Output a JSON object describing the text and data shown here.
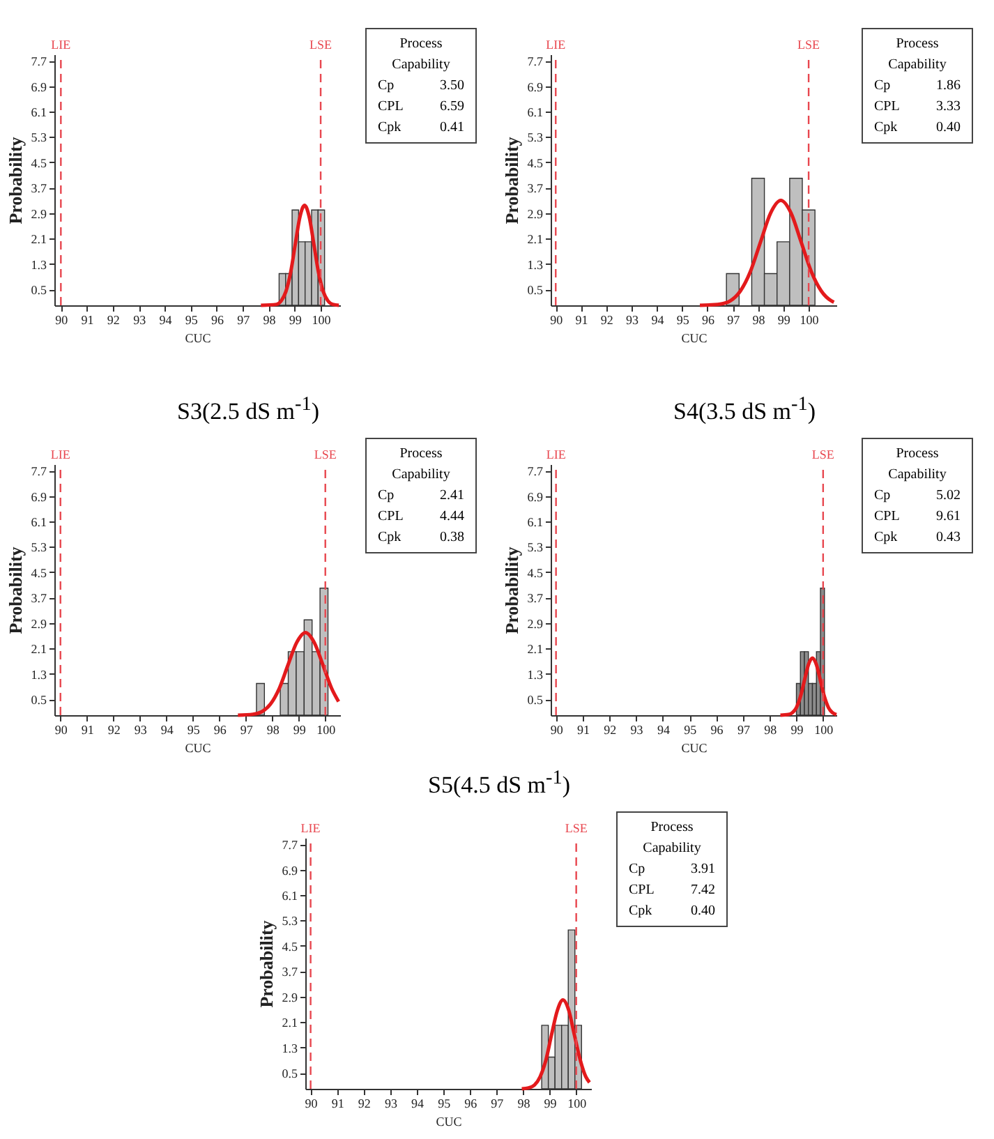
{
  "chart_data": [
    {
      "type": "histogram",
      "xlabel": "CUC",
      "ylabel": "Probability",
      "bins": [
        98.4,
        98.65,
        98.9,
        99.15,
        99.4,
        99.65,
        99.9,
        100.15
      ],
      "values": [
        1,
        1,
        3,
        2,
        2,
        3,
        3
      ],
      "color": "#bfbfbf",
      "series": [
        {
          "type": "line",
          "color": "#e31a1c",
          "x": [
            97.7,
            98.3,
            98.48,
            98.66,
            98.84,
            99.02,
            99.2,
            99.38,
            99.56,
            99.74,
            99.92,
            100.1,
            100.28,
            100.46,
            100.7
          ],
          "values": [
            0.0,
            0.03,
            0.14,
            0.43,
            1.02,
            1.91,
            2.78,
            3.15,
            2.78,
            1.91,
            1.02,
            0.43,
            0.14,
            0.03,
            0.0
          ]
        }
      ],
      "xlim": [
        89.75,
        100.75
      ],
      "xticks": [
        90,
        91,
        92,
        93,
        94,
        95,
        96,
        97,
        98,
        99,
        100
      ],
      "ylim": [
        0,
        7.9
      ],
      "yticks": [
        0.5,
        1.3,
        2.1,
        2.9,
        3.7,
        4.5,
        5.3,
        6.1,
        6.9,
        7.7
      ],
      "ref_lines": [
        {
          "axis": "x",
          "value": 90,
          "label": "LIE",
          "color": "#e8474f",
          "line_style": "dashed"
        },
        {
          "axis": "x",
          "value": 100,
          "label": "LSE",
          "color": "#e8474f",
          "line_style": "dashed"
        }
      ],
      "annotations": [
        "Process Capability",
        "Cp 3.50",
        "CPL 6.59",
        "Cpk 0.41"
      ]
    },
    {
      "type": "histogram",
      "xlabel": "CUC",
      "ylabel": "Probability",
      "bins": [
        96.75,
        97.25,
        97.75,
        98.25,
        98.75,
        99.25,
        99.75,
        100.25
      ],
      "values": [
        1,
        0,
        4,
        1,
        2,
        4,
        3
      ],
      "color": "#bfbfbf",
      "series": [
        {
          "type": "line",
          "color": "#e31a1c",
          "x": [
            95.7,
            96.5,
            96.9,
            97.3,
            97.7,
            98.1,
            98.5,
            98.9,
            99.3,
            99.7,
            100.1,
            100.5,
            100.9,
            101.0
          ],
          "values": [
            0.0,
            0.04,
            0.14,
            0.45,
            1.07,
            2.0,
            2.91,
            3.3,
            2.91,
            2.0,
            1.07,
            0.45,
            0.14,
            0.1
          ]
        }
      ],
      "xlim": [
        89.8,
        101.1
      ],
      "xticks": [
        90,
        91,
        92,
        93,
        94,
        95,
        96,
        97,
        98,
        99,
        100
      ],
      "ylim": [
        0,
        7.9
      ],
      "yticks": [
        0.5,
        1.3,
        2.1,
        2.9,
        3.7,
        4.5,
        5.3,
        6.1,
        6.9,
        7.7
      ],
      "ref_lines": [
        {
          "axis": "x",
          "value": 90,
          "label": "LIE",
          "color": "#e8474f",
          "line_style": "dashed"
        },
        {
          "axis": "x",
          "value": 100,
          "label": "LSE",
          "color": "#e8474f",
          "line_style": "dashed"
        }
      ],
      "annotations": [
        "Process Capability",
        "Cp 1.86",
        "CPL 3.33",
        "Cpk 0.40"
      ]
    },
    {
      "type": "histogram",
      "title": "S3(2.5 dS m$^{-1}$)",
      "xlabel": "CUC",
      "ylabel": "Probability",
      "bins": [
        97.4,
        97.7,
        98.0,
        98.3,
        98.6,
        98.9,
        99.2,
        99.5,
        99.8,
        100.1
      ],
      "values": [
        1,
        0,
        0,
        1,
        2,
        2,
        3,
        2,
        4
      ],
      "color": "#bfbfbf",
      "series": [
        {
          "type": "line",
          "color": "#e31a1c",
          "x": [
            96.7,
            97.27,
            97.6,
            97.93,
            98.26,
            98.59,
            98.92,
            99.25,
            99.58,
            99.91,
            100.24,
            100.5
          ],
          "values": [
            0.0,
            0.03,
            0.11,
            0.35,
            0.84,
            1.58,
            2.29,
            2.6,
            2.29,
            1.58,
            0.84,
            0.43
          ]
        }
      ],
      "xlim": [
        89.77,
        100.56
      ],
      "xticks": [
        90,
        91,
        92,
        93,
        94,
        95,
        96,
        97,
        98,
        99,
        100
      ],
      "ylim": [
        0,
        7.9
      ],
      "yticks": [
        0.5,
        1.3,
        2.1,
        2.9,
        3.7,
        4.5,
        5.3,
        6.1,
        6.9,
        7.7
      ],
      "ref_lines": [
        {
          "axis": "x",
          "value": 90,
          "label": "LIE",
          "color": "#e8474f",
          "line_style": "dashed"
        },
        {
          "axis": "x",
          "value": 100,
          "label": "LSE",
          "color": "#e8474f",
          "line_style": "dashed"
        }
      ],
      "annotations": [
        "Process Capability",
        "Cp 2.41",
        "CPL 4.44",
        "Cpk 0.38"
      ]
    },
    {
      "type": "histogram",
      "title": "S4(3.5 dS m$^{-1}$)",
      "xlabel": "CUC",
      "ylabel": "Probability",
      "bins": [
        99.0,
        99.15,
        99.3,
        99.45,
        99.6,
        99.75,
        99.9,
        100.05
      ],
      "values": [
        1,
        2,
        2,
        1,
        1,
        2,
        4
      ],
      "color": "#8c8c8c",
      "series": [
        {
          "type": "line",
          "color": "#e31a1c",
          "x": [
            98.4,
            98.7,
            98.85,
            99.0,
            99.15,
            99.3,
            99.45,
            99.6,
            99.75,
            99.9,
            100.05,
            100.2,
            100.35,
            100.5
          ],
          "values": [
            0.0,
            0.02,
            0.08,
            0.24,
            0.58,
            1.09,
            1.59,
            1.8,
            1.59,
            1.09,
            0.58,
            0.24,
            0.08,
            0.02
          ]
        }
      ],
      "xlim": [
        89.8,
        100.5
      ],
      "xticks": [
        90,
        91,
        92,
        93,
        94,
        95,
        96,
        97,
        98,
        99,
        100
      ],
      "ylim": [
        0,
        7.9
      ],
      "yticks": [
        0.5,
        1.3,
        2.1,
        2.9,
        3.7,
        4.5,
        5.3,
        6.1,
        6.9,
        7.7
      ],
      "ref_lines": [
        {
          "axis": "x",
          "value": 90,
          "label": "LIE",
          "color": "#e8474f",
          "line_style": "dashed"
        },
        {
          "axis": "x",
          "value": 100,
          "label": "LSE",
          "color": "#e8474f",
          "line_style": "dashed"
        }
      ],
      "annotations": [
        "Process Capability",
        "Cp 5.02",
        "CPL 9.61",
        "Cpk 0.43"
      ]
    },
    {
      "type": "histogram",
      "title": "S5(4.5 dS m$^{-1}$)",
      "xlabel": "CUC",
      "ylabel": "Probability",
      "bins": [
        98.7,
        98.95,
        99.2,
        99.45,
        99.7,
        99.95,
        100.2
      ],
      "values": [
        2,
        1,
        2,
        2,
        5,
        2
      ],
      "color": "#bfbfbf",
      "series": [
        {
          "type": "line",
          "color": "#e31a1c",
          "x": [
            97.95,
            98.21,
            98.43,
            98.64,
            98.86,
            99.07,
            99.29,
            99.5,
            99.72,
            99.93,
            100.15,
            100.36,
            100.5
          ],
          "values": [
            0.0,
            0.03,
            0.12,
            0.38,
            0.91,
            1.7,
            2.47,
            2.8,
            2.47,
            1.7,
            0.91,
            0.38,
            0.2
          ]
        }
      ],
      "xlim": [
        89.8,
        100.56
      ],
      "xticks": [
        90,
        91,
        92,
        93,
        94,
        95,
        96,
        97,
        98,
        99,
        100
      ],
      "ylim": [
        0,
        7.9
      ],
      "yticks": [
        0.5,
        1.3,
        2.1,
        2.9,
        3.7,
        4.5,
        5.3,
        6.1,
        6.9,
        7.7
      ],
      "ref_lines": [
        {
          "axis": "x",
          "value": 90,
          "label": "LIE",
          "color": "#e8474f",
          "line_style": "dashed"
        },
        {
          "axis": "x",
          "value": 100,
          "label": "LSE",
          "color": "#e8474f",
          "line_style": "dashed"
        }
      ],
      "annotations": [
        "Process Capability",
        "Cp 3.91",
        "CPL 7.42",
        "Cpk 0.40"
      ]
    }
  ]
}
